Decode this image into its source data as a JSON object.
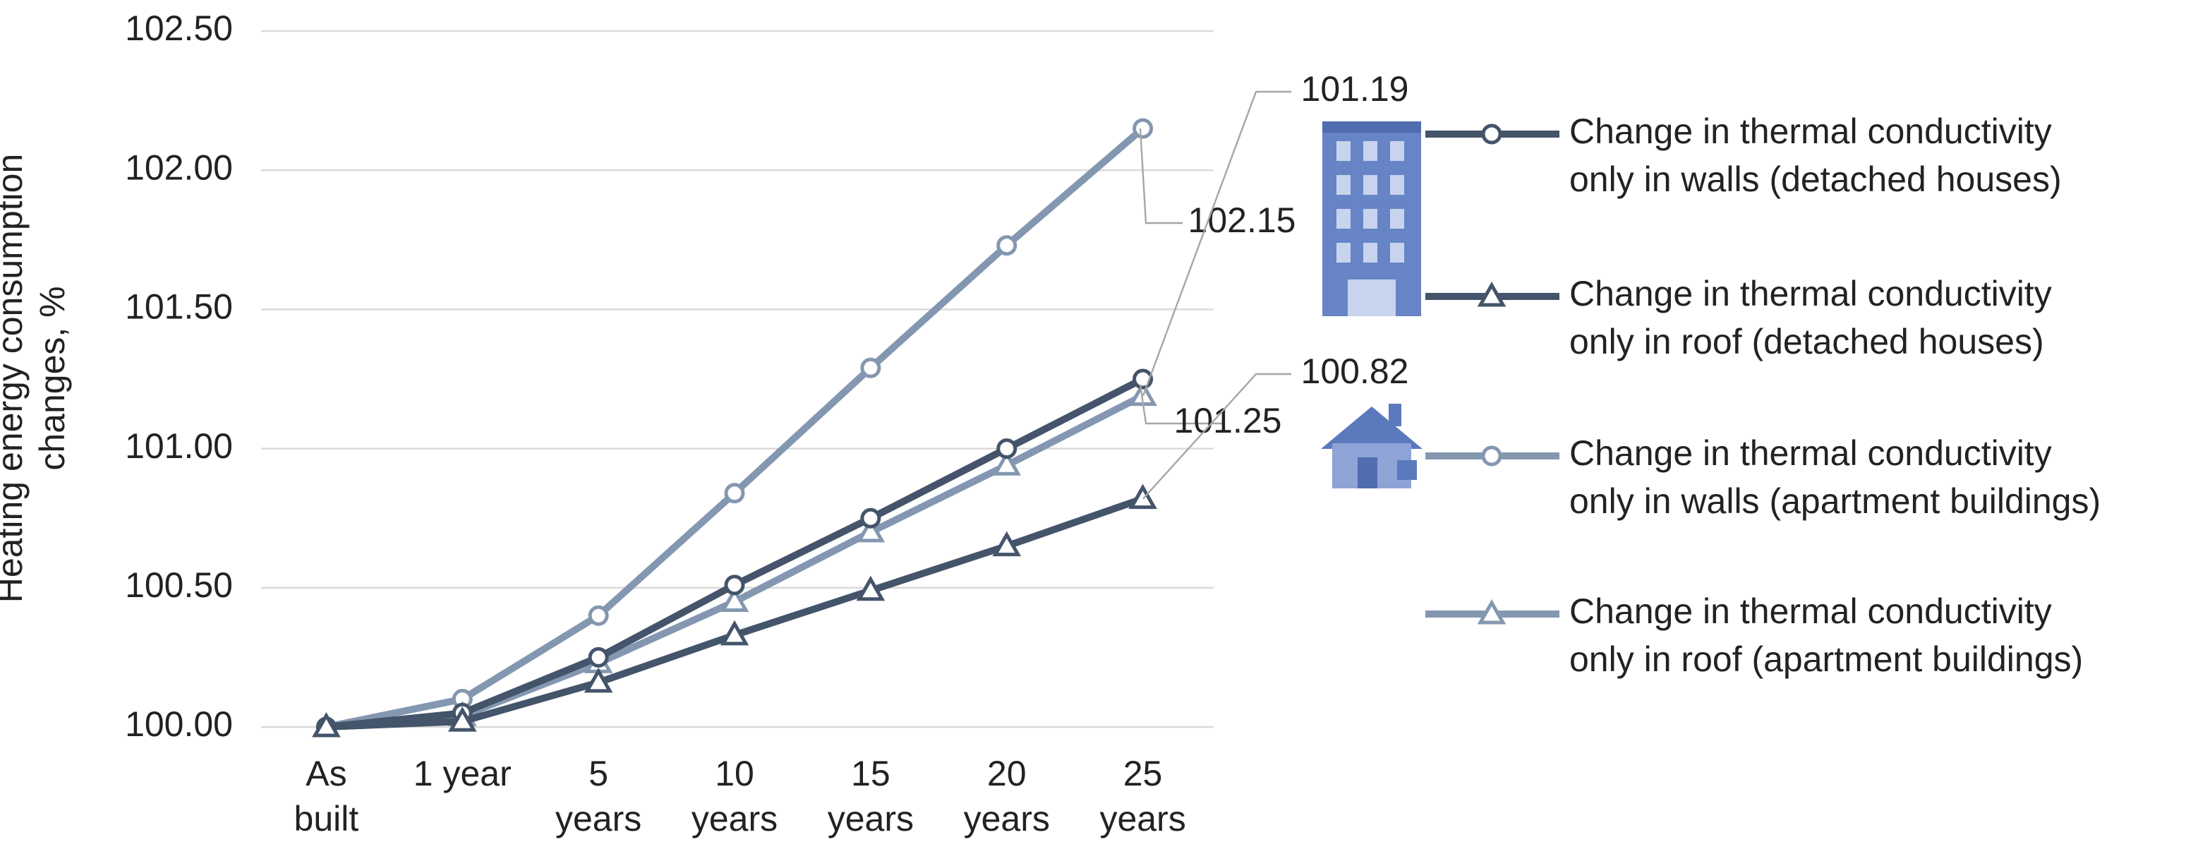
{
  "chart_data": {
    "type": "line",
    "y_label": "Heating energy consumption changes, %",
    "categories": [
      "As built",
      "1 year",
      "5 years",
      "10 years",
      "15 years",
      "20 years",
      "25 years"
    ],
    "series": [
      {
        "name": "Change in thermal conductivity only in walls (detached houses)",
        "color": "#44546a",
        "marker": "circle",
        "values": [
          100.0,
          100.05,
          100.25,
          100.51,
          100.75,
          101.0,
          101.25
        ]
      },
      {
        "name": "Change in thermal conductivity only in roof (detached houses)",
        "color": "#44546a",
        "marker": "triangle",
        "values": [
          100.0,
          100.02,
          100.16,
          100.33,
          100.49,
          100.65,
          100.82
        ]
      },
      {
        "name": "Change in thermal conductivity only in walls (apartment buildings)",
        "color": "#8497b0",
        "marker": "circle",
        "values": [
          100.0,
          100.1,
          100.4,
          100.84,
          101.29,
          101.73,
          102.15
        ]
      },
      {
        "name": "Change in thermal conductivity only in roof (apartment buildings)",
        "color": "#8497b0",
        "marker": "triangle",
        "values": [
          100.0,
          100.04,
          100.23,
          100.45,
          100.7,
          100.94,
          101.19
        ]
      }
    ],
    "ylim": [
      100.0,
      102.5
    ],
    "yticks": [
      {
        "value": 100.0,
        "label": "100.00"
      },
      {
        "value": 100.5,
        "label": "100.50"
      },
      {
        "value": 101.0,
        "label": "101.00"
      },
      {
        "value": 101.5,
        "label": "101.50"
      },
      {
        "value": 102.0,
        "label": "102.00"
      },
      {
        "value": 102.5,
        "label": "102.50"
      }
    ],
    "grid": true,
    "legend": "right"
  }
}
